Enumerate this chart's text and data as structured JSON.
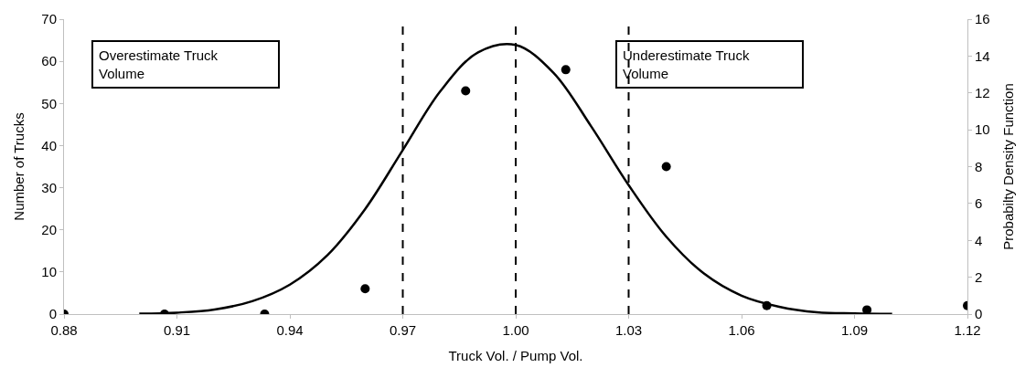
{
  "chart_data": {
    "type": "scatter",
    "xlabel": "Truck Vol. / Pump Vol.",
    "ylabel": "Number of Trucks",
    "y2label": "Probabilty Density Function",
    "xlim": [
      0.88,
      1.12
    ],
    "xticks": [
      0.88,
      0.91,
      0.94,
      0.97,
      {
        "value": 1.0,
        "label": "1.00"
      },
      1.03,
      1.06,
      1.09,
      1.12
    ],
    "ylim": [
      0,
      70
    ],
    "yticks": [
      0,
      10,
      20,
      30,
      40,
      50,
      60,
      70
    ],
    "y2lim": [
      0,
      16
    ],
    "y2ticks": [
      0,
      2,
      4,
      6,
      8,
      10,
      12,
      14,
      16
    ],
    "series": [
      {
        "marker": "circle",
        "color": "#000000",
        "x": [
          0.88,
          0.9067,
          0.9333,
          0.96,
          0.9867,
          1.0133,
          1.04,
          1.0667,
          1.0933,
          1.12
        ],
        "values": [
          0,
          0,
          0,
          6,
          53,
          58,
          35,
          2,
          1,
          2
        ]
      },
      {
        "type": "line",
        "axis": "y2",
        "color": "#000000",
        "line_style": "solid",
        "x": [
          0.9,
          0.91,
          0.92,
          0.93,
          0.94,
          0.95,
          0.96,
          0.97,
          0.98,
          0.99,
          1.0,
          1.01,
          1.02,
          1.03,
          1.04,
          1.05,
          1.06,
          1.07,
          1.08,
          1.09,
          1.1
        ],
        "values": [
          0.02,
          0.08,
          0.25,
          0.7,
          1.6,
          3.2,
          5.7,
          8.9,
          12.1,
          14.2,
          14.6,
          13.1,
          10.2,
          7.0,
          4.2,
          2.2,
          1.0,
          0.4,
          0.1,
          0.04,
          0.01
        ]
      }
    ],
    "ref_lines": [
      {
        "axis": "x",
        "value": 0.97,
        "color": "#000000",
        "line_style": "dashed"
      },
      {
        "axis": "x",
        "value": 1.0,
        "color": "#000000",
        "line_style": "dashed"
      },
      {
        "axis": "x",
        "value": 1.03,
        "color": "#000000",
        "line_style": "dashed"
      }
    ],
    "annotations": [
      "Overestimate Truck\nVolume",
      "Underestimate Truck\nVolume"
    ]
  }
}
